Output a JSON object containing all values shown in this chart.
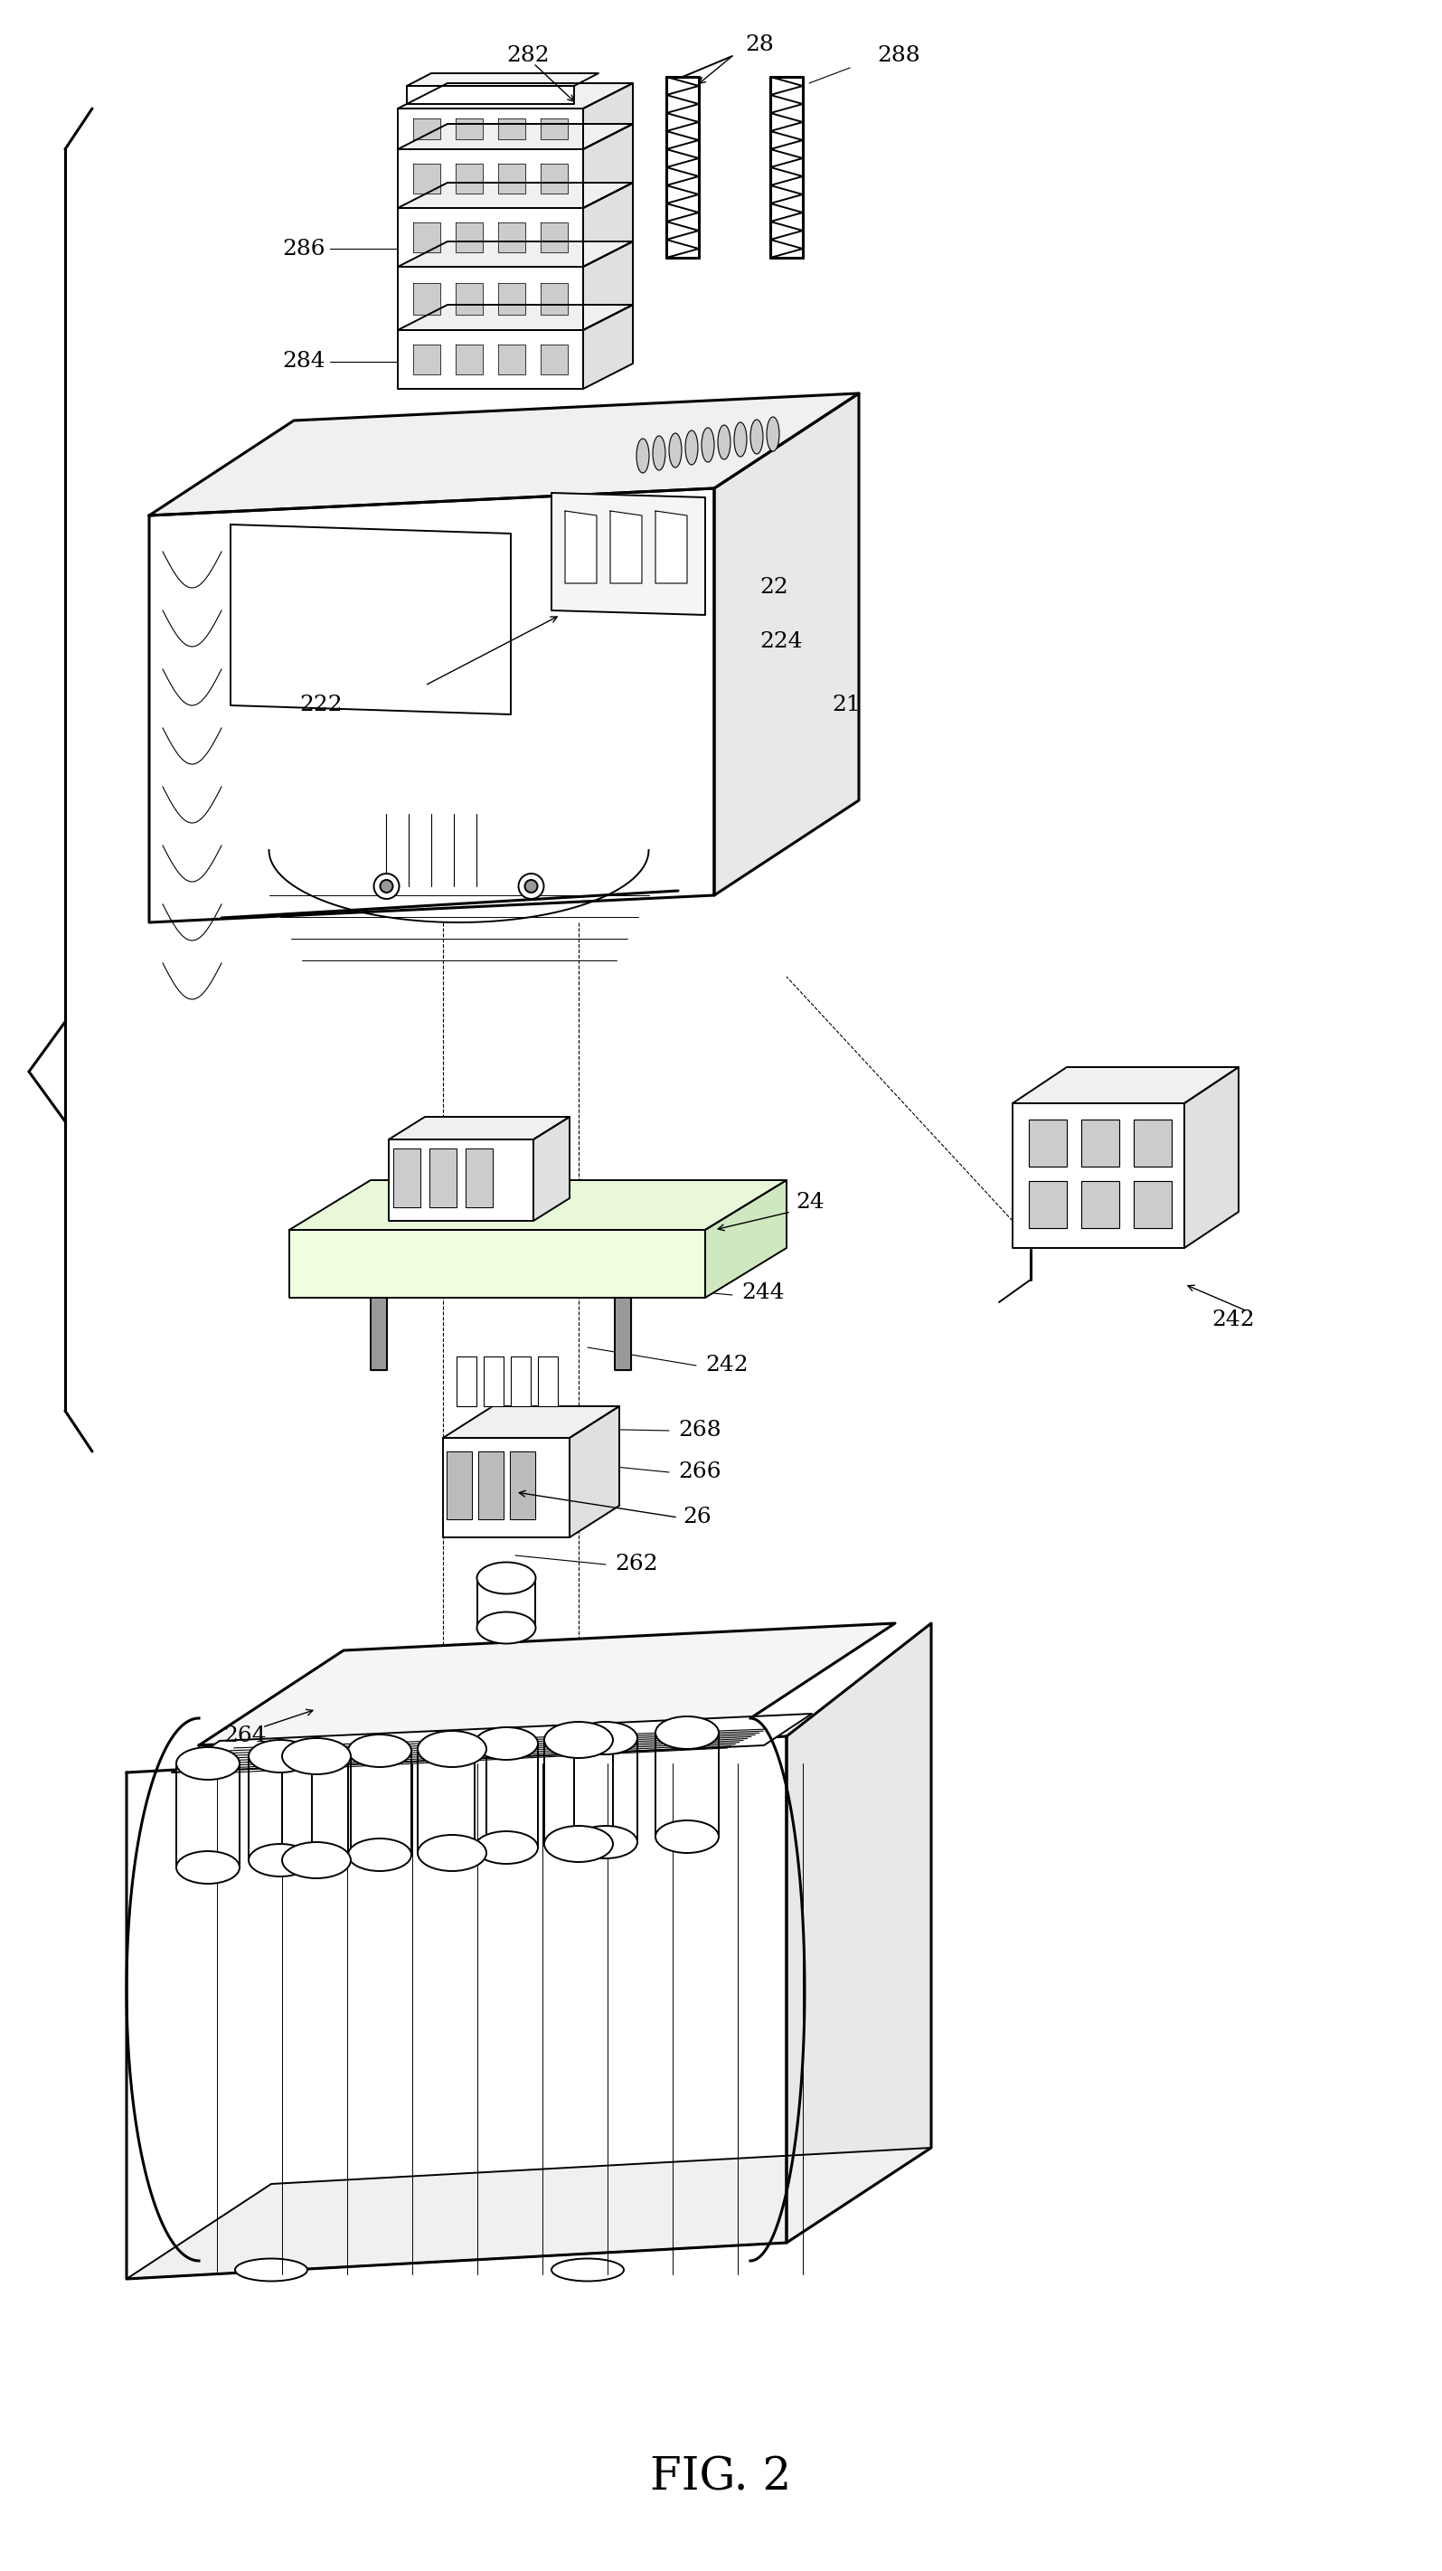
{
  "title": "FIG. 2",
  "bg": "#ffffff",
  "lc": "#000000",
  "fig_w": 15.95,
  "fig_h": 28.43,
  "label_fs": 18,
  "title_fs": 36
}
